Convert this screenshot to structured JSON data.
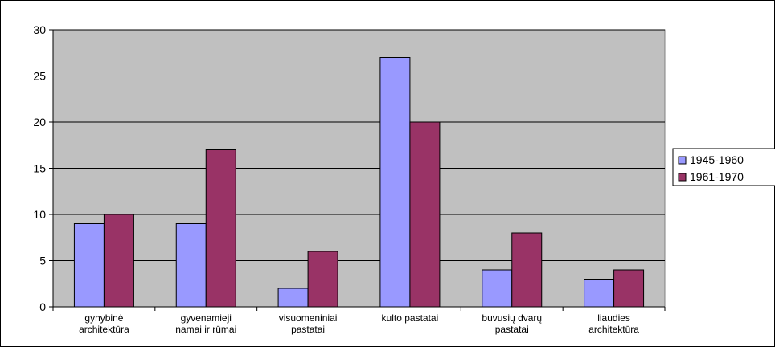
{
  "chart_data": {
    "type": "bar",
    "categories": [
      [
        "gynybinė",
        "architektūra"
      ],
      [
        "gyvenamieji",
        "namai ir rūmai"
      ],
      [
        "visuomeniniai",
        "pastatai"
      ],
      [
        "kulto pastatai"
      ],
      [
        "buvusių dvarų",
        "pastatai"
      ],
      [
        "liaudies",
        "architektūra"
      ]
    ],
    "series": [
      {
        "name": "1945-1960",
        "color": "#9999ff",
        "values": [
          9,
          9,
          2,
          27,
          4,
          3
        ]
      },
      {
        "name": "1961-1970",
        "color": "#993366",
        "values": [
          10,
          17,
          6,
          20,
          8,
          4
        ]
      }
    ],
    "ylim": [
      0,
      30
    ],
    "yticks": [
      0,
      5,
      10,
      15,
      20,
      25,
      30
    ],
    "grid": true,
    "plot_background": "#c0c0c0",
    "legend": "right"
  }
}
